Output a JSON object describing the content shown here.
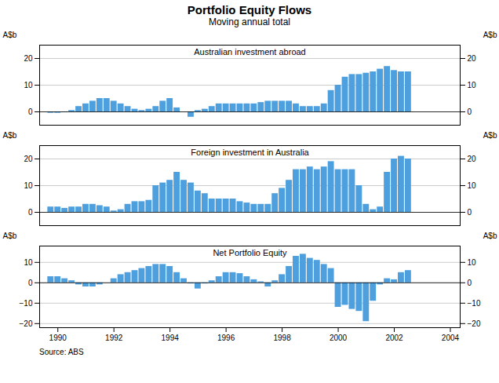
{
  "title": "Portfolio Equity Flows",
  "subtitle": "Moving annual total",
  "source": "Source: ABS",
  "chart_data": [
    {
      "type": "bar",
      "title": "Australian investment abroad",
      "ylabel": "A$b",
      "color": "#4d9fde",
      "x": [
        1989.75,
        1990,
        1990.25,
        1990.5,
        1990.75,
        1991,
        1991.25,
        1991.5,
        1991.75,
        1992,
        1992.25,
        1992.5,
        1992.75,
        1993,
        1993.25,
        1993.5,
        1993.75,
        1994,
        1994.25,
        1994.5,
        1994.75,
        1995,
        1995.25,
        1995.5,
        1995.75,
        1996,
        1996.25,
        1996.5,
        1996.75,
        1997,
        1997.25,
        1997.5,
        1997.75,
        1998,
        1998.25,
        1998.5,
        1998.75,
        1999,
        1999.25,
        1999.5,
        1999.75,
        2000,
        2000.25,
        2000.5,
        2000.75,
        2001,
        2001.25,
        2001.5,
        2001.75,
        2002,
        2002.25,
        2002.5
      ],
      "values": [
        -0.5,
        -0.5,
        -0.3,
        0.5,
        2.0,
        3.0,
        4.0,
        5.0,
        5.0,
        4.0,
        3.0,
        2.0,
        1.0,
        0.5,
        1.0,
        2.0,
        4.0,
        5.0,
        1.5,
        0.0,
        -2.0,
        0.5,
        1.0,
        2.0,
        3.0,
        3.0,
        3.0,
        3.0,
        3.0,
        3.0,
        3.5,
        4.0,
        4.0,
        4.0,
        4.0,
        3.0,
        2.0,
        2.0,
        2.0,
        3.0,
        8.0,
        10.0,
        13.0,
        14.0,
        14.0,
        14.5,
        15.0,
        16.0,
        17.0,
        15.5,
        15.0,
        15.0
      ],
      "xlim": [
        1989.35,
        2004.35
      ],
      "ylim": [
        -5,
        25
      ],
      "yticks": [
        0,
        10,
        20
      ],
      "grid": true,
      "tick_labels": "y"
    },
    {
      "type": "bar",
      "title": "Foreign investment in Australia",
      "ylabel": "A$b",
      "color": "#4d9fde",
      "x": [
        1989.75,
        1990,
        1990.25,
        1990.5,
        1990.75,
        1991,
        1991.25,
        1991.5,
        1991.75,
        1992,
        1992.25,
        1992.5,
        1992.75,
        1993,
        1993.25,
        1993.5,
        1993.75,
        1994,
        1994.25,
        1994.5,
        1994.75,
        1995,
        1995.25,
        1995.5,
        1995.75,
        1996,
        1996.25,
        1996.5,
        1996.75,
        1997,
        1997.25,
        1997.5,
        1997.75,
        1998,
        1998.25,
        1998.5,
        1998.75,
        1999,
        1999.25,
        1999.5,
        1999.75,
        2000,
        2000.25,
        2000.5,
        2000.75,
        2001,
        2001.25,
        2001.5,
        2001.75,
        2002,
        2002.25,
        2002.5
      ],
      "values": [
        2.0,
        2.0,
        1.5,
        2.0,
        2.0,
        3.0,
        3.0,
        2.5,
        2.0,
        0.5,
        1.0,
        3.0,
        4.0,
        4.0,
        4.5,
        10.0,
        11.0,
        12.0,
        15.0,
        12.0,
        11.0,
        8.0,
        7.0,
        5.0,
        5.0,
        5.0,
        5.0,
        4.0,
        3.5,
        3.0,
        3.0,
        3.0,
        7.0,
        9.0,
        12.0,
        16.0,
        16.0,
        17.0,
        16.0,
        17.0,
        19.0,
        16.0,
        16.0,
        16.0,
        10.0,
        3.0,
        1.0,
        2.0,
        15.0,
        20.0,
        21.0,
        20.0
      ],
      "xlim": [
        1989.35,
        2004.35
      ],
      "ylim": [
        -5,
        25
      ],
      "yticks": [
        0,
        10,
        20
      ],
      "grid": true,
      "tick_labels": "y"
    },
    {
      "type": "bar",
      "title": "Net Portfolio Equity",
      "ylabel": "A$b",
      "color": "#4d9fde",
      "x": [
        1989.75,
        1990,
        1990.25,
        1990.5,
        1990.75,
        1991,
        1991.25,
        1991.5,
        1991.75,
        1992,
        1992.25,
        1992.5,
        1992.75,
        1993,
        1993.25,
        1993.5,
        1993.75,
        1994,
        1994.25,
        1994.5,
        1994.75,
        1995,
        1995.25,
        1995.5,
        1995.75,
        1996,
        1996.25,
        1996.5,
        1996.75,
        1997,
        1997.25,
        1997.5,
        1997.75,
        1998,
        1998.25,
        1998.5,
        1998.75,
        1999,
        1999.25,
        1999.5,
        1999.75,
        2000,
        2000.25,
        2000.5,
        2000.75,
        2001,
        2001.25,
        2001.5,
        2001.75,
        2002,
        2002.25,
        2002.5
      ],
      "values": [
        3.0,
        3.0,
        2.0,
        1.0,
        -1.0,
        -2.0,
        -2.0,
        -1.0,
        0.0,
        2.0,
        4.0,
        5.0,
        6.0,
        7.0,
        8.0,
        9.0,
        9.0,
        8.0,
        5.0,
        2.0,
        -0.5,
        -3.0,
        -0.5,
        1.0,
        3.0,
        5.0,
        5.0,
        4.5,
        3.0,
        1.5,
        0.5,
        -2.0,
        1.0,
        4.0,
        8.0,
        13.0,
        14.0,
        12.0,
        11.0,
        9.0,
        7.0,
        -12.0,
        -11.0,
        -13.0,
        -14.0,
        -19.0,
        -9.0,
        -1.0,
        2.0,
        1.5,
        5.0,
        6.0
      ],
      "xlim": [
        1989.35,
        2004.35
      ],
      "xticks": [
        1990,
        1992,
        1994,
        1996,
        1998,
        2000,
        2002,
        2004
      ],
      "ylim": [
        -22,
        18
      ],
      "yticks": [
        -20,
        -10,
        0,
        10
      ],
      "grid": true
    }
  ]
}
